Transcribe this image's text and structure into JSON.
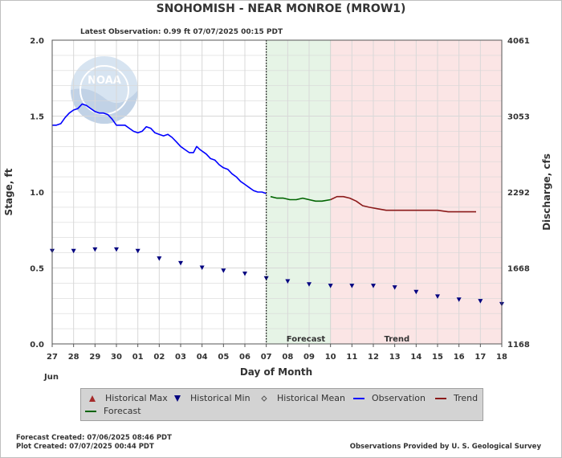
{
  "header": {
    "title": "SNOHOMISH - NEAR MONROE  (MROW1)",
    "latest_observation": "Latest Observation: 0.99 ft 07/07/2025 00:15 PDT"
  },
  "chart_data": {
    "type": "line",
    "title": "SNOHOMISH - NEAR MONROE  (MROW1)",
    "xlabel": "Day of Month",
    "ylabel": "Stage, ft",
    "y2label": "Discharge, cfs",
    "x_ticks": [
      "27",
      "28",
      "29",
      "30",
      "01",
      "02",
      "03",
      "04",
      "05",
      "06",
      "07",
      "08",
      "09",
      "10",
      "11",
      "12",
      "13",
      "14",
      "15",
      "16",
      "17",
      "18"
    ],
    "x_month_label": "Jun",
    "x_range": [
      0,
      21
    ],
    "ylim": [
      0.0,
      2.0
    ],
    "y_ticks": [
      "0.0",
      "0.5",
      "1.0",
      "1.5",
      "2.0"
    ],
    "y2_ticks": [
      "1168",
      "1668",
      "2292",
      "3053",
      "4061"
    ],
    "grid": true,
    "forecast_region": {
      "start": 10.0,
      "end": 13.0,
      "label": "Forecast",
      "color": "#e6f4e6"
    },
    "trend_region": {
      "start": 13.0,
      "end": 21.0,
      "label": "Trend",
      "color": "#fbe5e5"
    },
    "now_marker": 10.0,
    "series": [
      {
        "name": "Observation",
        "color": "#0000ff",
        "points": [
          [
            0.0,
            1.44
          ],
          [
            0.2,
            1.44
          ],
          [
            0.4,
            1.45
          ],
          [
            0.6,
            1.49
          ],
          [
            0.8,
            1.52
          ],
          [
            1.0,
            1.54
          ],
          [
            1.2,
            1.55
          ],
          [
            1.4,
            1.58
          ],
          [
            1.6,
            1.57
          ],
          [
            1.8,
            1.55
          ],
          [
            2.0,
            1.53
          ],
          [
            2.2,
            1.52
          ],
          [
            2.4,
            1.52
          ],
          [
            2.6,
            1.51
          ],
          [
            2.8,
            1.48
          ],
          [
            3.0,
            1.44
          ],
          [
            3.2,
            1.44
          ],
          [
            3.4,
            1.44
          ],
          [
            3.6,
            1.42
          ],
          [
            3.8,
            1.4
          ],
          [
            4.0,
            1.39
          ],
          [
            4.2,
            1.4
          ],
          [
            4.4,
            1.43
          ],
          [
            4.6,
            1.42
          ],
          [
            4.8,
            1.39
          ],
          [
            5.0,
            1.38
          ],
          [
            5.2,
            1.37
          ],
          [
            5.4,
            1.38
          ],
          [
            5.6,
            1.36
          ],
          [
            5.8,
            1.33
          ],
          [
            6.0,
            1.3
          ],
          [
            6.2,
            1.28
          ],
          [
            6.4,
            1.26
          ],
          [
            6.6,
            1.26
          ],
          [
            6.75,
            1.3
          ],
          [
            6.9,
            1.28
          ],
          [
            7.2,
            1.25
          ],
          [
            7.4,
            1.22
          ],
          [
            7.6,
            1.21
          ],
          [
            7.8,
            1.18
          ],
          [
            8.0,
            1.16
          ],
          [
            8.2,
            1.15
          ],
          [
            8.4,
            1.12
          ],
          [
            8.6,
            1.1
          ],
          [
            8.8,
            1.07
          ],
          [
            9.0,
            1.05
          ],
          [
            9.2,
            1.03
          ],
          [
            9.4,
            1.01
          ],
          [
            9.6,
            1.0
          ],
          [
            9.8,
            1.0
          ],
          [
            10.0,
            0.99
          ]
        ]
      },
      {
        "name": "Forecast",
        "color": "#006400",
        "points": [
          [
            10.2,
            0.97
          ],
          [
            10.5,
            0.96
          ],
          [
            10.8,
            0.96
          ],
          [
            11.1,
            0.95
          ],
          [
            11.4,
            0.95
          ],
          [
            11.7,
            0.96
          ],
          [
            12.0,
            0.95
          ],
          [
            12.3,
            0.94
          ],
          [
            12.6,
            0.94
          ],
          [
            13.0,
            0.95
          ]
        ]
      },
      {
        "name": "Trend",
        "color": "#8b1a1a",
        "points": [
          [
            13.0,
            0.95
          ],
          [
            13.3,
            0.97
          ],
          [
            13.6,
            0.97
          ],
          [
            13.9,
            0.96
          ],
          [
            14.2,
            0.94
          ],
          [
            14.5,
            0.91
          ],
          [
            14.8,
            0.9
          ],
          [
            15.2,
            0.89
          ],
          [
            15.6,
            0.88
          ],
          [
            16.0,
            0.88
          ],
          [
            16.5,
            0.88
          ],
          [
            17.0,
            0.88
          ],
          [
            17.5,
            0.88
          ],
          [
            18.0,
            0.88
          ],
          [
            18.5,
            0.87
          ],
          [
            19.0,
            0.87
          ],
          [
            19.5,
            0.87
          ],
          [
            19.8,
            0.87
          ]
        ]
      },
      {
        "name": "Historical Min",
        "color": "#000080",
        "points": [
          [
            0,
            0.61
          ],
          [
            1,
            0.61
          ],
          [
            2,
            0.62
          ],
          [
            3,
            0.62
          ],
          [
            4,
            0.61
          ],
          [
            5,
            0.56
          ],
          [
            6,
            0.53
          ],
          [
            7,
            0.5
          ],
          [
            8,
            0.48
          ],
          [
            9,
            0.46
          ],
          [
            10,
            0.43
          ],
          [
            11,
            0.41
          ],
          [
            12,
            0.39
          ],
          [
            13,
            0.38
          ],
          [
            14,
            0.38
          ],
          [
            15,
            0.38
          ],
          [
            16,
            0.37
          ],
          [
            17,
            0.34
          ],
          [
            18,
            0.31
          ],
          [
            19,
            0.29
          ],
          [
            20,
            0.28
          ],
          [
            21,
            0.26
          ]
        ]
      }
    ]
  },
  "legend": {
    "items": [
      {
        "label": "Historical Max",
        "symbol": "triangle-up",
        "color": "#a52a2a"
      },
      {
        "label": "Historical Min",
        "symbol": "triangle-down",
        "color": "#000080"
      },
      {
        "label": "Historical Mean",
        "symbol": "diamond",
        "color": "#555555"
      },
      {
        "label": "Observation",
        "symbol": "line",
        "color": "#0000ff"
      },
      {
        "label": "Trend",
        "symbol": "line",
        "color": "#8b1a1a"
      },
      {
        "label": "Forecast",
        "symbol": "line",
        "color": "#006400"
      }
    ]
  },
  "footer": {
    "forecast_created": "Forecast Created: 07/06/2025 08:46 PDT",
    "plot_created": "Plot Created: 07/07/2025 00:44 PDT",
    "source": "Observations Provided by U. S. Geological Survey"
  },
  "watermark": {
    "text": "NOAA",
    "icon": "noaa-logo-icon"
  },
  "colors": {
    "grid": "#d8d8d8",
    "plot_border": "#555555",
    "legend_bg": "#d3d3d3"
  }
}
